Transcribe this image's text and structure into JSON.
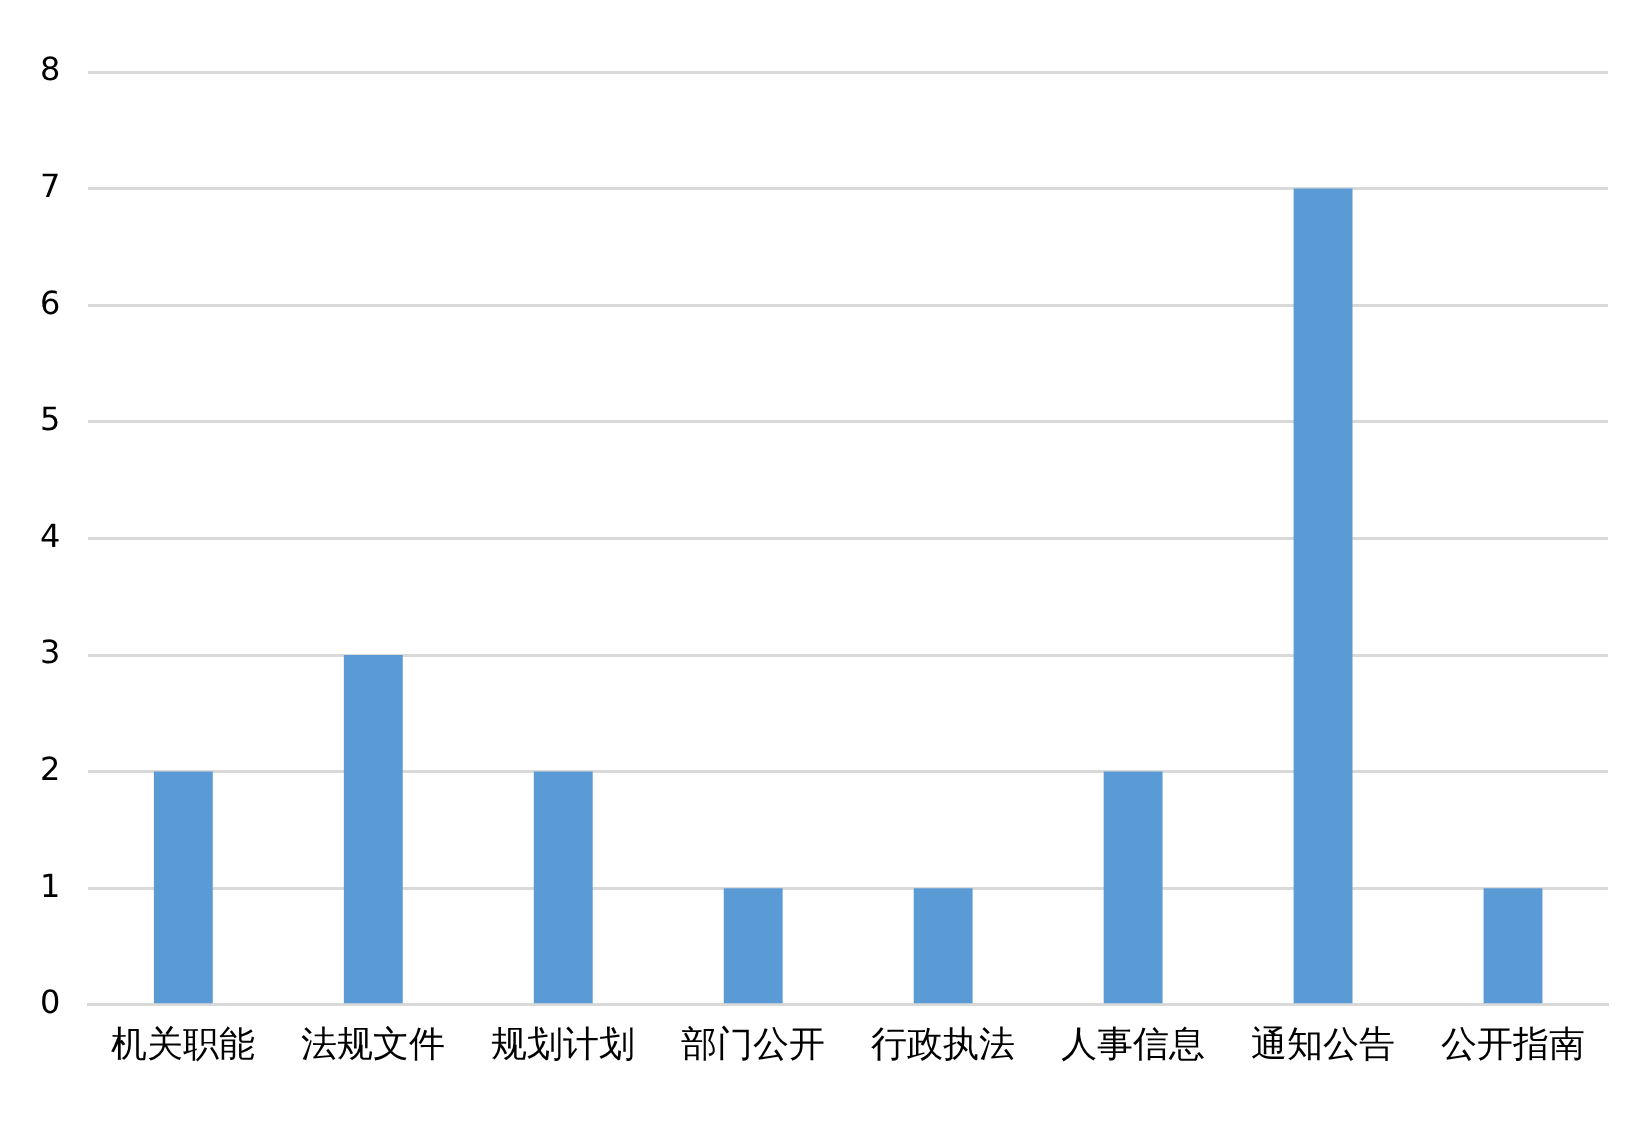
{
  "chart_data": {
    "type": "bar",
    "categories": [
      "机关职能",
      "法规文件",
      "规划计划",
      "部门公开",
      "行政执法",
      "人事信息",
      "通知公告",
      "公开指南"
    ],
    "values": [
      2,
      3,
      2,
      1,
      1,
      2,
      7,
      1
    ],
    "color": "#5b9bd5",
    "ylim": [
      0,
      8
    ],
    "yticks": [
      0,
      1,
      2,
      3,
      4,
      5,
      6,
      7,
      8
    ],
    "grid": "y",
    "legend": false
  }
}
